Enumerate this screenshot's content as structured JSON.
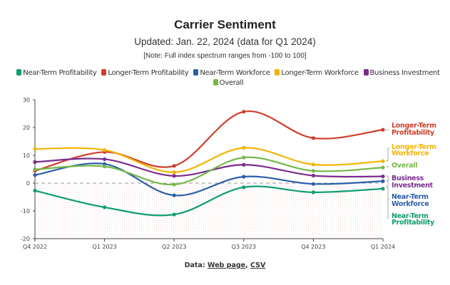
{
  "chart_data": {
    "type": "line",
    "title": "Carrier Sentiment",
    "subtitle": "Updated: Jan. 22, 2024 (data for Q1 2024)",
    "note": "[Note: Full index spectrum ranges from -100 to 100]",
    "categories": [
      "Q4 2022",
      "Q1 2023",
      "Q2 2023",
      "Q3 2023",
      "Q4 2023",
      "Q1 2024"
    ],
    "ylim": [
      -20,
      30
    ],
    "yticks": [
      "30",
      "20",
      "10",
      "0",
      "-10",
      "-20"
    ],
    "legend_position": "top",
    "zero_line": "dashed",
    "negative_region_shaded": true,
    "series": [
      {
        "name": "Near-Term Profitability",
        "color": "#0f9d6e",
        "values": [
          -2.7,
          -8.7,
          -11.3,
          -1.5,
          -3.3,
          -2.0
        ],
        "end_label": [
          "Near-Term",
          "Profitability"
        ]
      },
      {
        "name": "Longer-Term Profitability",
        "color": "#cf3e2a",
        "values": [
          4.4,
          11.2,
          6.2,
          25.7,
          16.2,
          19.2
        ],
        "end_label": [
          "Longer-Term",
          "Profitability"
        ]
      },
      {
        "name": "Near-Term Workforce",
        "color": "#2b5fa8",
        "values": [
          2.9,
          6.9,
          -4.4,
          2.3,
          -0.3,
          0.7
        ],
        "end_label": [
          "Near-Term",
          "Workforce"
        ]
      },
      {
        "name": "Longer-Term Workforce",
        "color": "#f4b400",
        "values": [
          12.3,
          11.9,
          3.9,
          12.7,
          6.7,
          7.9
        ],
        "end_label": [
          "Longer-Term",
          "Workforce"
        ]
      },
      {
        "name": "Business Investment",
        "color": "#7a2c8e",
        "values": [
          7.6,
          8.6,
          2.6,
          6.6,
          2.7,
          2.4
        ],
        "end_label": [
          "Business",
          "Investment"
        ]
      },
      {
        "name": "Overall",
        "color": "#76b84a",
        "values": [
          4.9,
          6.0,
          -0.5,
          9.2,
          4.4,
          5.6
        ],
        "end_label": [
          "Overall"
        ]
      }
    ]
  },
  "footer": {
    "prefix": "Data:",
    "link1": "Web page",
    "sep": ",",
    "link2": "CSV"
  }
}
